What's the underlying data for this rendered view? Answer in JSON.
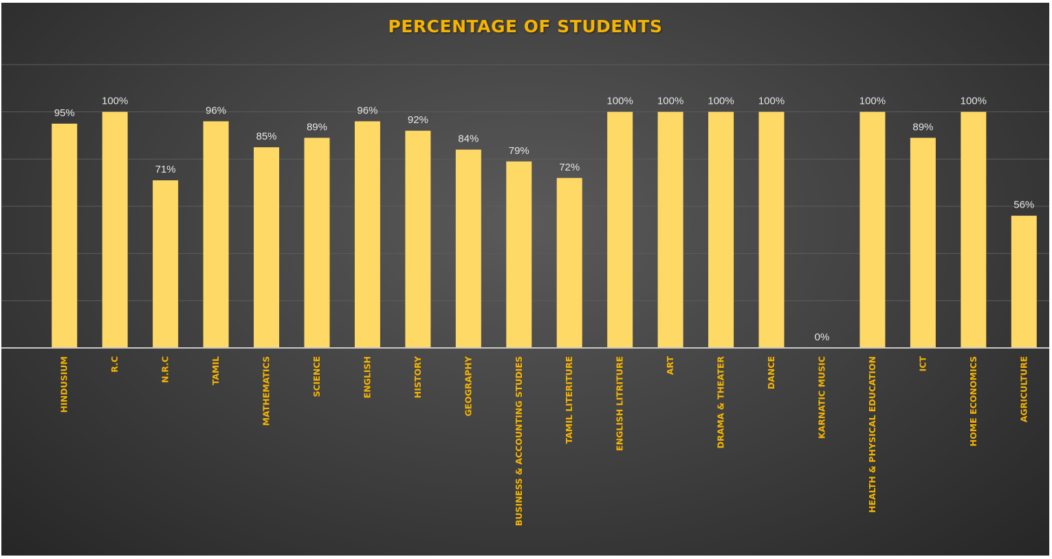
{
  "chart_data": {
    "type": "bar",
    "title": "PERCENTAGE OF STUDENTS",
    "xlabel": "",
    "ylabel": "",
    "ylim": [
      0,
      120
    ],
    "grid": true,
    "legend": "none",
    "bar_color": "#ffd966",
    "title_color": "#f5b400",
    "label_color": "#f5b400",
    "categories": [
      "HINDUSIUM",
      "R.C",
      "N.R.C",
      "TAMIL",
      "MATHEMATICS",
      "SCIENCE",
      "ENGLISH",
      "HISTORY",
      "GEOGRAPHY",
      "BUSINESS & ACCOUNTING STUDIES",
      "TAMIL LITERITURE",
      "ENGLISH LITRITURE",
      "ART",
      "DRAMA & THEATER",
      "DANCE",
      "KARNATIC MUSIC",
      "HEALTH & PHYSICAL EDUCATION",
      "ICT",
      "HOME ECONOMICS",
      "AGRICULTURE"
    ],
    "values": [
      95,
      100,
      71,
      96,
      85,
      89,
      96,
      92,
      84,
      79,
      72,
      100,
      100,
      100,
      100,
      0,
      100,
      89,
      100,
      56
    ],
    "data_labels": [
      "95%",
      "100%",
      "71%",
      "96%",
      "85%",
      "89%",
      "96%",
      "92%",
      "84%",
      "79%",
      "72%",
      "100%",
      "100%",
      "100%",
      "100%",
      "0%",
      "100%",
      "89%",
      "100%",
      "56%"
    ]
  }
}
